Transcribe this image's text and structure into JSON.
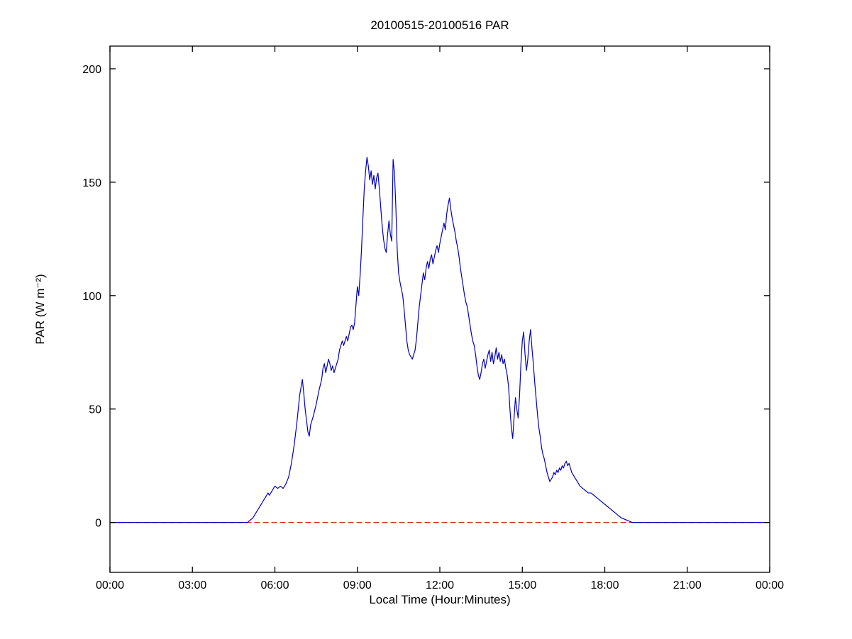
{
  "chart_data": {
    "type": "line",
    "title": "20100515-20100516 PAR",
    "xlabel": "Local Time (Hour:Minutes)",
    "ylabel": "PAR (W m⁻²)",
    "xlim": [
      0,
      24
    ],
    "ylim": [
      -22,
      210
    ],
    "grid": false,
    "legend": null,
    "axes_color": "#000000",
    "background_color": "#ffffff",
    "xticks": {
      "values": [
        0,
        3,
        6,
        9,
        12,
        15,
        18,
        21,
        24
      ],
      "labels": [
        "00:00",
        "03:00",
        "06:00",
        "09:00",
        "12:00",
        "15:00",
        "18:00",
        "21:00",
        "00:00"
      ]
    },
    "yticks": {
      "values": [
        0,
        50,
        100,
        150,
        200
      ],
      "labels": [
        "0",
        "50",
        "100",
        "150",
        "200"
      ]
    },
    "series": [
      {
        "name": "zero-reference-line",
        "color": "#cc2222",
        "style": "dashed",
        "points": [
          [
            0,
            0
          ],
          [
            24,
            0
          ]
        ]
      },
      {
        "name": "PAR",
        "color": "#0000bb",
        "style": "solid",
        "points": [
          [
            0,
            0
          ],
          [
            0.5,
            0
          ],
          [
            1,
            0
          ],
          [
            1.5,
            0
          ],
          [
            2,
            0
          ],
          [
            2.5,
            0
          ],
          [
            3,
            0
          ],
          [
            3.5,
            0
          ],
          [
            4,
            0
          ],
          [
            4.5,
            0
          ],
          [
            4.8,
            0
          ],
          [
            5.0,
            0
          ],
          [
            5.1,
            1
          ],
          [
            5.2,
            2
          ],
          [
            5.3,
            4
          ],
          [
            5.4,
            6
          ],
          [
            5.5,
            8
          ],
          [
            5.6,
            10
          ],
          [
            5.7,
            12
          ],
          [
            5.75,
            13
          ],
          [
            5.8,
            12
          ],
          [
            5.9,
            14
          ],
          [
            6.0,
            16
          ],
          [
            6.1,
            15
          ],
          [
            6.2,
            16
          ],
          [
            6.3,
            15
          ],
          [
            6.4,
            17
          ],
          [
            6.5,
            20
          ],
          [
            6.6,
            26
          ],
          [
            6.7,
            34
          ],
          [
            6.8,
            44
          ],
          [
            6.9,
            56
          ],
          [
            7.0,
            63
          ],
          [
            7.05,
            57
          ],
          [
            7.1,
            50
          ],
          [
            7.15,
            45
          ],
          [
            7.2,
            40
          ],
          [
            7.25,
            38
          ],
          [
            7.3,
            43
          ],
          [
            7.4,
            47
          ],
          [
            7.5,
            52
          ],
          [
            7.6,
            58
          ],
          [
            7.7,
            63
          ],
          [
            7.75,
            68
          ],
          [
            7.8,
            70
          ],
          [
            7.85,
            66
          ],
          [
            7.9,
            69
          ],
          [
            7.95,
            72
          ],
          [
            8.0,
            70
          ],
          [
            8.05,
            67
          ],
          [
            8.1,
            69
          ],
          [
            8.15,
            66
          ],
          [
            8.2,
            68
          ],
          [
            8.3,
            72
          ],
          [
            8.35,
            76
          ],
          [
            8.4,
            78
          ],
          [
            8.45,
            80
          ],
          [
            8.5,
            78
          ],
          [
            8.55,
            80
          ],
          [
            8.6,
            82
          ],
          [
            8.65,
            80
          ],
          [
            8.7,
            83
          ],
          [
            8.75,
            86
          ],
          [
            8.8,
            87
          ],
          [
            8.85,
            85
          ],
          [
            8.9,
            88
          ],
          [
            8.95,
            96
          ],
          [
            9.0,
            104
          ],
          [
            9.05,
            100
          ],
          [
            9.1,
            109
          ],
          [
            9.15,
            120
          ],
          [
            9.2,
            134
          ],
          [
            9.25,
            147
          ],
          [
            9.3,
            155
          ],
          [
            9.35,
            161
          ],
          [
            9.4,
            157
          ],
          [
            9.45,
            151
          ],
          [
            9.5,
            155
          ],
          [
            9.55,
            149
          ],
          [
            9.6,
            153
          ],
          [
            9.65,
            147
          ],
          [
            9.7,
            152
          ],
          [
            9.75,
            154
          ],
          [
            9.8,
            147
          ],
          [
            9.85,
            139
          ],
          [
            9.9,
            131
          ],
          [
            9.95,
            125
          ],
          [
            10.0,
            121
          ],
          [
            10.05,
            119
          ],
          [
            10.1,
            127
          ],
          [
            10.15,
            133
          ],
          [
            10.2,
            127
          ],
          [
            10.25,
            124
          ],
          [
            10.3,
            160
          ],
          [
            10.35,
            154
          ],
          [
            10.4,
            139
          ],
          [
            10.45,
            120
          ],
          [
            10.5,
            110
          ],
          [
            10.55,
            106
          ],
          [
            10.6,
            103
          ],
          [
            10.65,
            100
          ],
          [
            10.7,
            94
          ],
          [
            10.75,
            87
          ],
          [
            10.8,
            80
          ],
          [
            10.85,
            76
          ],
          [
            10.9,
            74
          ],
          [
            11.0,
            72
          ],
          [
            11.05,
            74
          ],
          [
            11.1,
            76
          ],
          [
            11.15,
            81
          ],
          [
            11.2,
            88
          ],
          [
            11.25,
            95
          ],
          [
            11.3,
            100
          ],
          [
            11.35,
            105
          ],
          [
            11.4,
            110
          ],
          [
            11.45,
            107
          ],
          [
            11.5,
            112
          ],
          [
            11.55,
            115
          ],
          [
            11.6,
            112
          ],
          [
            11.65,
            116
          ],
          [
            11.7,
            118
          ],
          [
            11.75,
            114
          ],
          [
            11.8,
            117
          ],
          [
            11.85,
            120
          ],
          [
            11.9,
            122
          ],
          [
            11.95,
            119
          ],
          [
            12.0,
            123
          ],
          [
            12.05,
            126
          ],
          [
            12.1,
            129
          ],
          [
            12.15,
            132
          ],
          [
            12.2,
            129
          ],
          [
            12.25,
            136
          ],
          [
            12.3,
            140
          ],
          [
            12.35,
            143
          ],
          [
            12.4,
            138
          ],
          [
            12.45,
            134
          ],
          [
            12.5,
            131
          ],
          [
            12.55,
            128
          ],
          [
            12.6,
            124
          ],
          [
            12.65,
            121
          ],
          [
            12.7,
            117
          ],
          [
            12.75,
            112
          ],
          [
            12.8,
            108
          ],
          [
            12.85,
            104
          ],
          [
            12.9,
            100
          ],
          [
            12.95,
            97
          ],
          [
            13.0,
            95
          ],
          [
            13.05,
            91
          ],
          [
            13.1,
            87
          ],
          [
            13.15,
            83
          ],
          [
            13.2,
            80
          ],
          [
            13.25,
            78
          ],
          [
            13.3,
            74
          ],
          [
            13.35,
            69
          ],
          [
            13.4,
            65
          ],
          [
            13.45,
            63
          ],
          [
            13.5,
            66
          ],
          [
            13.55,
            70
          ],
          [
            13.6,
            72
          ],
          [
            13.65,
            68
          ],
          [
            13.7,
            71
          ],
          [
            13.75,
            74
          ],
          [
            13.8,
            76
          ],
          [
            13.85,
            71
          ],
          [
            13.9,
            75
          ],
          [
            13.95,
            70
          ],
          [
            14.0,
            73
          ],
          [
            14.05,
            77
          ],
          [
            14.1,
            72
          ],
          [
            14.15,
            75
          ],
          [
            14.2,
            71
          ],
          [
            14.25,
            74
          ],
          [
            14.3,
            70
          ],
          [
            14.35,
            72
          ],
          [
            14.4,
            68
          ],
          [
            14.45,
            65
          ],
          [
            14.5,
            60
          ],
          [
            14.55,
            50
          ],
          [
            14.6,
            42
          ],
          [
            14.65,
            37
          ],
          [
            14.7,
            46
          ],
          [
            14.75,
            55
          ],
          [
            14.8,
            50
          ],
          [
            14.85,
            46
          ],
          [
            14.9,
            56
          ],
          [
            14.95,
            70
          ],
          [
            15.0,
            80
          ],
          [
            15.05,
            84
          ],
          [
            15.1,
            74
          ],
          [
            15.15,
            67
          ],
          [
            15.2,
            72
          ],
          [
            15.25,
            80
          ],
          [
            15.3,
            85
          ],
          [
            15.35,
            77
          ],
          [
            15.4,
            70
          ],
          [
            15.45,
            62
          ],
          [
            15.5,
            55
          ],
          [
            15.55,
            48
          ],
          [
            15.6,
            42
          ],
          [
            15.65,
            38
          ],
          [
            15.7,
            33
          ],
          [
            15.75,
            30
          ],
          [
            15.8,
            28
          ],
          [
            15.85,
            25
          ],
          [
            15.9,
            22
          ],
          [
            15.95,
            20
          ],
          [
            16.0,
            18
          ],
          [
            16.05,
            19
          ],
          [
            16.1,
            20
          ],
          [
            16.15,
            22
          ],
          [
            16.2,
            21
          ],
          [
            16.25,
            23
          ],
          [
            16.3,
            22
          ],
          [
            16.35,
            24
          ],
          [
            16.4,
            23
          ],
          [
            16.45,
            25
          ],
          [
            16.5,
            24
          ],
          [
            16.55,
            26
          ],
          [
            16.6,
            27
          ],
          [
            16.65,
            25
          ],
          [
            16.7,
            26
          ],
          [
            16.75,
            24
          ],
          [
            16.8,
            22
          ],
          [
            16.85,
            21
          ],
          [
            16.9,
            20
          ],
          [
            16.95,
            19
          ],
          [
            17.0,
            18
          ],
          [
            17.1,
            16
          ],
          [
            17.2,
            15
          ],
          [
            17.3,
            14
          ],
          [
            17.4,
            13
          ],
          [
            17.5,
            13
          ],
          [
            17.6,
            12
          ],
          [
            17.7,
            11
          ],
          [
            17.8,
            10
          ],
          [
            17.9,
            9
          ],
          [
            18.0,
            8
          ],
          [
            18.1,
            7
          ],
          [
            18.2,
            6
          ],
          [
            18.3,
            5
          ],
          [
            18.4,
            4
          ],
          [
            18.5,
            3
          ],
          [
            18.6,
            2
          ],
          [
            18.7,
            1.5
          ],
          [
            18.8,
            1
          ],
          [
            18.9,
            0.5
          ],
          [
            19.0,
            0
          ],
          [
            19.5,
            0
          ],
          [
            20,
            0
          ],
          [
            20.5,
            0
          ],
          [
            21,
            0
          ],
          [
            21.5,
            0
          ],
          [
            22,
            0
          ],
          [
            22.5,
            0
          ],
          [
            23,
            0
          ],
          [
            23.5,
            0
          ],
          [
            24,
            0
          ]
        ]
      }
    ]
  }
}
